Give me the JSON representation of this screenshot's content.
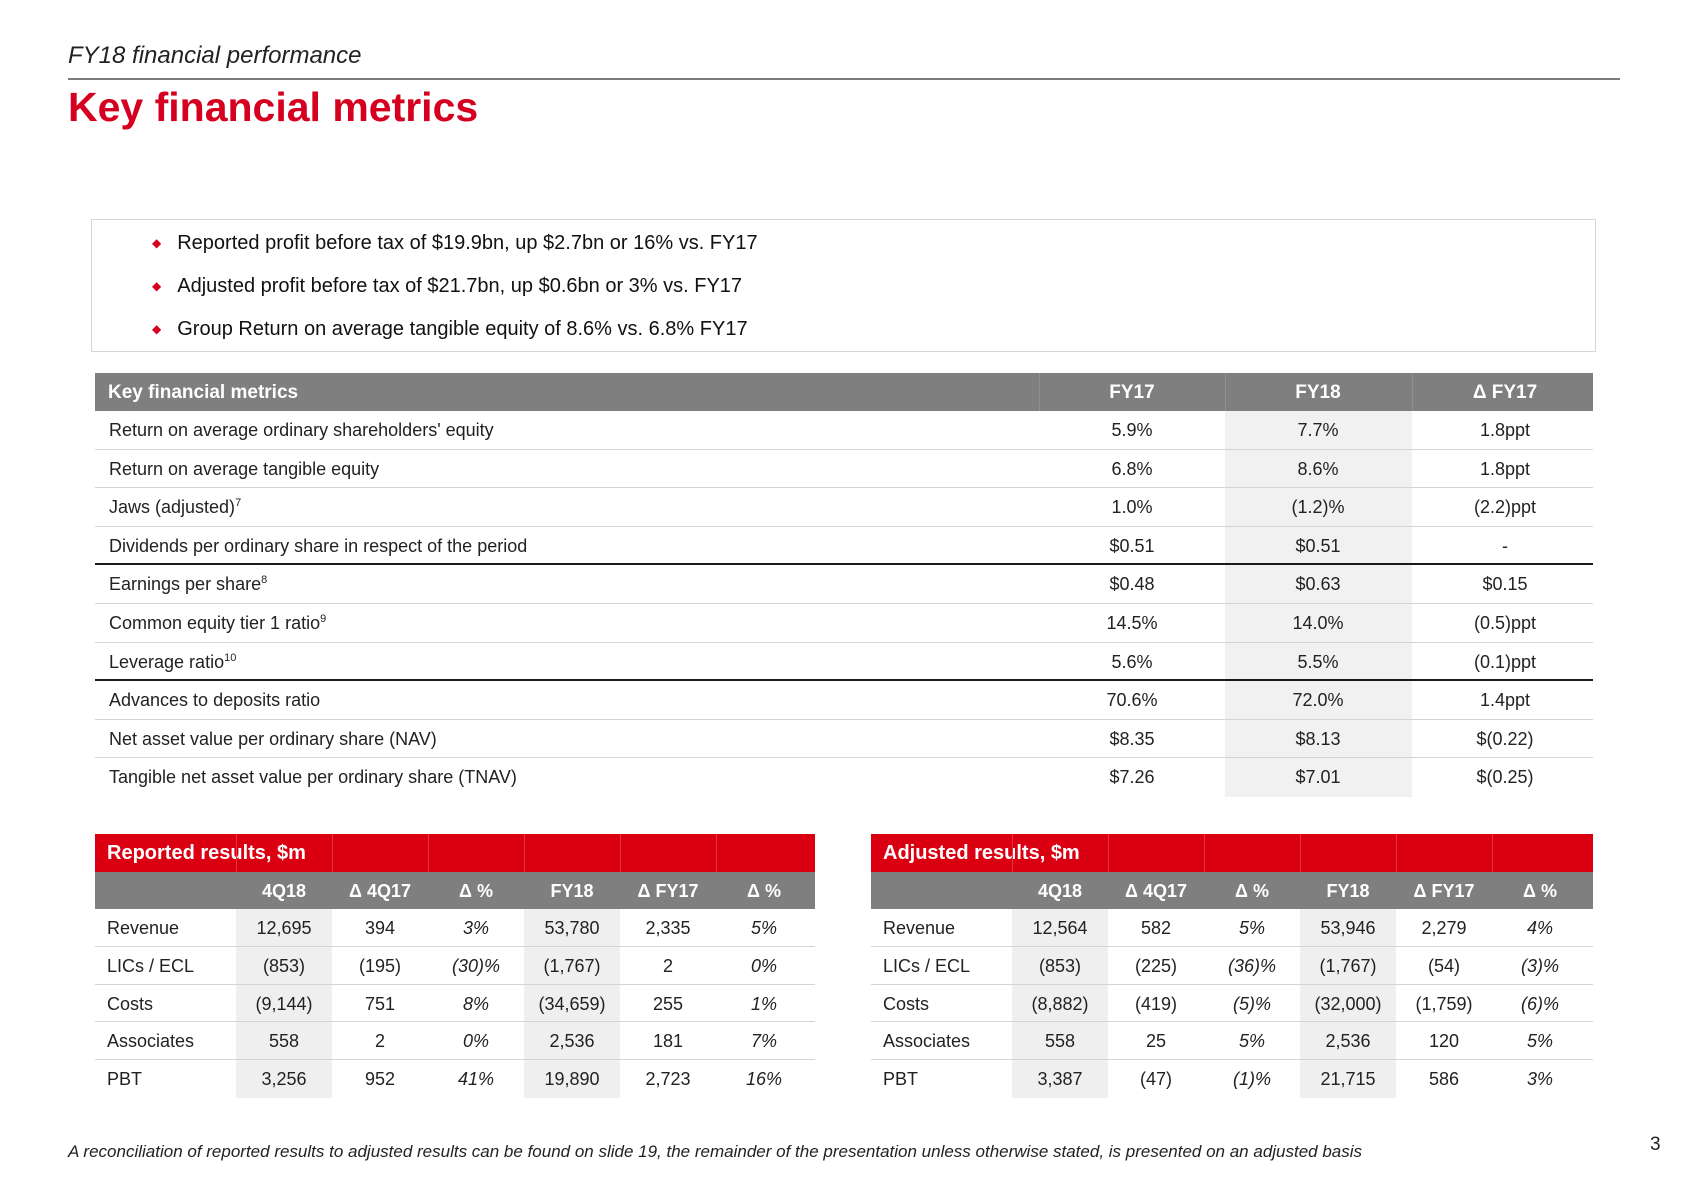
{
  "header": {
    "subtitle": "FY18 financial performance",
    "title": "Key financial metrics"
  },
  "highlights": [
    "Reported profit before tax of $19.9bn, up $2.7bn or 16% vs. FY17",
    "Adjusted profit before tax of $21.7bn, up $0.6bn or 3% vs. FY17",
    "Group Return on average tangible equity of 8.6% vs. 6.8% FY17"
  ],
  "key_metrics": {
    "title": "Key financial metrics",
    "columns": [
      "FY17",
      "FY18",
      "Δ FY17"
    ],
    "rows": [
      {
        "label": "Return on average ordinary shareholders' equity",
        "sup": "",
        "values": [
          "5.9%",
          "7.7%",
          "1.8ppt"
        ]
      },
      {
        "label": "Return on average tangible equity",
        "sup": "",
        "values": [
          "6.8%",
          "8.6%",
          "1.8ppt"
        ]
      },
      {
        "label": "Jaws (adjusted)",
        "sup": "7",
        "values": [
          "1.0%",
          "(1.2)%",
          "(2.2)ppt"
        ]
      },
      {
        "label": "Dividends per ordinary share in respect of the period",
        "sup": "",
        "values": [
          "$0.51",
          "$0.51",
          "-"
        ]
      },
      {
        "label": "Earnings per share",
        "sup": "8",
        "values": [
          "$0.48",
          "$0.63",
          "$0.15"
        ]
      },
      {
        "label": "Common equity tier 1 ratio",
        "sup": "9",
        "values": [
          "14.5%",
          "14.0%",
          "(0.5)ppt"
        ]
      },
      {
        "label": "Leverage ratio",
        "sup": "10",
        "values": [
          "5.6%",
          "5.5%",
          "(0.1)ppt"
        ]
      },
      {
        "label": "Advances to deposits ratio",
        "sup": "",
        "values": [
          "70.6%",
          "72.0%",
          "1.4ppt"
        ]
      },
      {
        "label": "Net asset value per ordinary share (NAV)",
        "sup": "",
        "values": [
          "$8.35",
          "$8.13",
          "$(0.22)"
        ]
      },
      {
        "label": "Tangible net asset value per ordinary share (TNAV)",
        "sup": "",
        "values": [
          "$7.26",
          "$7.01",
          "$(0.25)"
        ]
      }
    ]
  },
  "reported": {
    "title": "Reported results, $m",
    "columns": [
      "4Q18",
      "Δ 4Q17",
      "Δ %",
      "FY18",
      "Δ FY17",
      "Δ %"
    ],
    "rows": [
      {
        "label": "Revenue",
        "values": [
          "12,695",
          "394",
          "3%",
          "53,780",
          "2,335",
          "5%"
        ]
      },
      {
        "label": "LICs / ECL",
        "values": [
          "(853)",
          "(195)",
          "(30)%",
          "(1,767)",
          "2",
          "0%"
        ]
      },
      {
        "label": "Costs",
        "values": [
          "(9,144)",
          "751",
          "8%",
          "(34,659)",
          "255",
          "1%"
        ]
      },
      {
        "label": "Associates",
        "values": [
          "558",
          "2",
          "0%",
          "2,536",
          "181",
          "7%"
        ]
      },
      {
        "label": "PBT",
        "values": [
          "3,256",
          "952",
          "41%",
          "19,890",
          "2,723",
          "16%"
        ]
      }
    ]
  },
  "adjusted": {
    "title": "Adjusted results, $m",
    "columns": [
      "4Q18",
      "Δ 4Q17",
      "Δ %",
      "FY18",
      "Δ FY17",
      "Δ %"
    ],
    "rows": [
      {
        "label": "Revenue",
        "values": [
          "12,564",
          "582",
          "5%",
          "53,946",
          "2,279",
          "4%"
        ]
      },
      {
        "label": "LICs / ECL",
        "values": [
          "(853)",
          "(225)",
          "(36)%",
          "(1,767)",
          "(54)",
          "(3)%"
        ]
      },
      {
        "label": "Costs",
        "values": [
          "(8,882)",
          "(419)",
          "(5)%",
          "(32,000)",
          "(1,759)",
          "(6)%"
        ]
      },
      {
        "label": "Associates",
        "values": [
          "558",
          "25",
          "5%",
          "2,536",
          "120",
          "5%"
        ]
      },
      {
        "label": "PBT",
        "values": [
          "3,387",
          "(47)",
          "(1)%",
          "21,715",
          "586",
          "3%"
        ]
      }
    ]
  },
  "footer": {
    "note": "A reconciliation of reported results to adjusted results can be found on slide 19, the remainder of the presentation unless otherwise stated, is presented on an adjusted basis",
    "page": "3"
  },
  "colors": {
    "brand_red": "#db0011",
    "title_red": "#d5001f",
    "header_grey": "#7f7f7f"
  }
}
